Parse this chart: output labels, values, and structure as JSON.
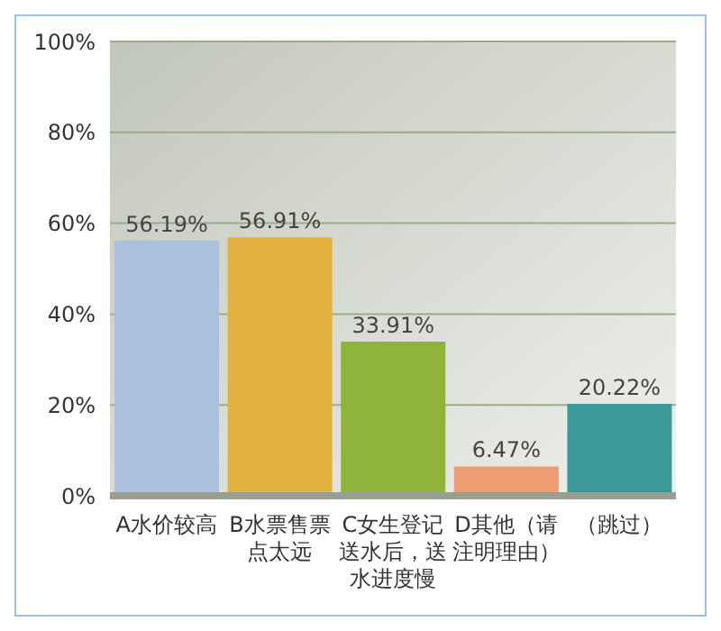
{
  "chart_data": {
    "type": "bar",
    "categories": [
      "A水价较高",
      "B水票售票点太远",
      "C女生登记送水后，送水进度慢",
      "D其他（请注明理由）",
      "（跳过）"
    ],
    "values": [
      56.19,
      56.91,
      33.91,
      6.47,
      20.22
    ],
    "value_labels": [
      "56.19%",
      "56.91%",
      "33.91%",
      "6.47%",
      "20.22%"
    ],
    "colors": [
      "#a9c1dc",
      "#e2b23f",
      "#8fb43a",
      "#ef9c72",
      "#3a9a9a"
    ],
    "ylim": [
      0,
      100
    ],
    "yticks": [
      {
        "value": 0,
        "label": "0%"
      },
      {
        "value": 20,
        "label": "20%"
      },
      {
        "value": 40,
        "label": "40%"
      },
      {
        "value": 60,
        "label": "60%"
      },
      {
        "value": 80,
        "label": "80%"
      },
      {
        "value": 100,
        "label": "100%"
      }
    ],
    "grid": "y"
  }
}
